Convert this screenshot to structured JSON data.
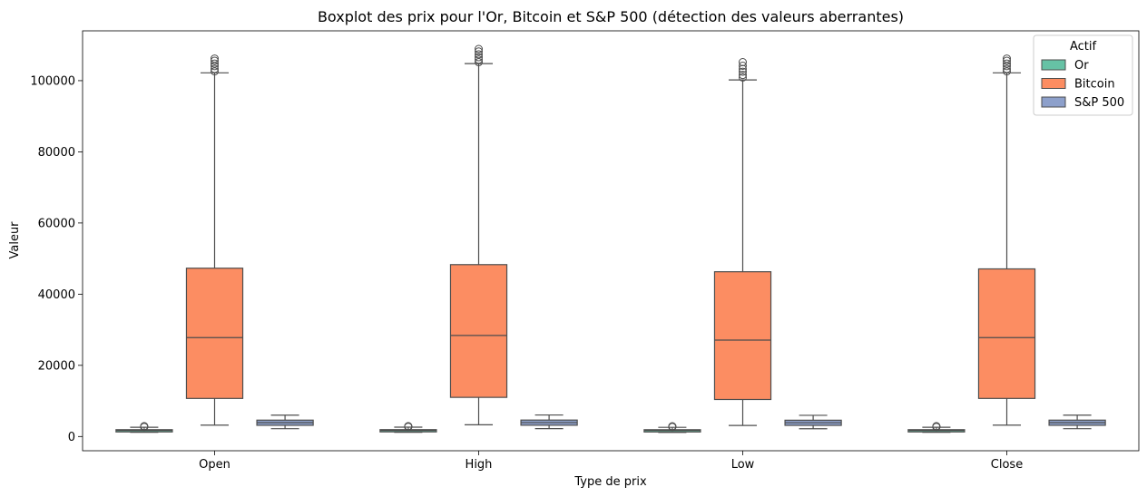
{
  "chart_data": {
    "type": "box",
    "title": "Boxplot des prix pour l'Or, Bitcoin et S&P 500 (détection des valeurs aberrantes)",
    "xlabel": "Type de prix",
    "ylabel": "Valeur",
    "ylim": [
      -4000,
      114000
    ],
    "yticks": [
      0,
      20000,
      40000,
      60000,
      80000,
      100000
    ],
    "categories": [
      "Open",
      "High",
      "Low",
      "Close"
    ],
    "legend": {
      "title": "Actif",
      "placement": "top-right"
    },
    "series": [
      {
        "name": "Or",
        "color": "#66c2a5",
        "boxes": [
          {
            "whisker_low": 1180,
            "q1": 1290,
            "median": 1700,
            "q3": 1920,
            "whisker_high": 2600,
            "outliers": [
              2700,
              2800,
              2900
            ]
          },
          {
            "whisker_low": 1190,
            "q1": 1300,
            "median": 1710,
            "q3": 1930,
            "whisker_high": 2620,
            "outliers": [
              2720,
              2820,
              2900
            ]
          },
          {
            "whisker_low": 1170,
            "q1": 1280,
            "median": 1690,
            "q3": 1910,
            "whisker_high": 2580,
            "outliers": [
              2680,
              2780,
              2880
            ]
          },
          {
            "whisker_low": 1180,
            "q1": 1290,
            "median": 1700,
            "q3": 1920,
            "whisker_high": 2600,
            "outliers": [
              2700,
              2800,
              2900
            ]
          }
        ]
      },
      {
        "name": "Bitcoin",
        "color": "#fc8d62",
        "boxes": [
          {
            "whisker_low": 3200,
            "q1": 10700,
            "median": 27800,
            "q3": 47300,
            "whisker_high": 102200,
            "outliers": [
              102600,
              103300,
              104100,
              104800,
              105600,
              106200
            ]
          },
          {
            "whisker_low": 3300,
            "q1": 11000,
            "median": 28400,
            "q3": 48300,
            "whisker_high": 104800,
            "outliers": [
              105200,
              105900,
              106600,
              107400,
              108200,
              108900
            ]
          },
          {
            "whisker_low": 3100,
            "q1": 10400,
            "median": 27100,
            "q3": 46300,
            "whisker_high": 100200,
            "outliers": [
              100900,
              101600,
              102500,
              103300,
              104200,
              105200
            ]
          },
          {
            "whisker_low": 3200,
            "q1": 10700,
            "median": 27800,
            "q3": 47100,
            "whisker_high": 102200,
            "outliers": [
              102600,
              103300,
              104100,
              104800,
              105600,
              106200
            ]
          }
        ]
      },
      {
        "name": "S&P 500",
        "color": "#8da0cb",
        "boxes": [
          {
            "whisker_low": 2200,
            "q1": 3150,
            "median": 3900,
            "q3": 4600,
            "whisker_high": 6000,
            "outliers": []
          },
          {
            "whisker_low": 2220,
            "q1": 3170,
            "median": 3920,
            "q3": 4620,
            "whisker_high": 6050,
            "outliers": []
          },
          {
            "whisker_low": 2180,
            "q1": 3130,
            "median": 3880,
            "q3": 4580,
            "whisker_high": 5960,
            "outliers": []
          },
          {
            "whisker_low": 2200,
            "q1": 3150,
            "median": 3900,
            "q3": 4600,
            "whisker_high": 6000,
            "outliers": []
          }
        ]
      }
    ]
  }
}
